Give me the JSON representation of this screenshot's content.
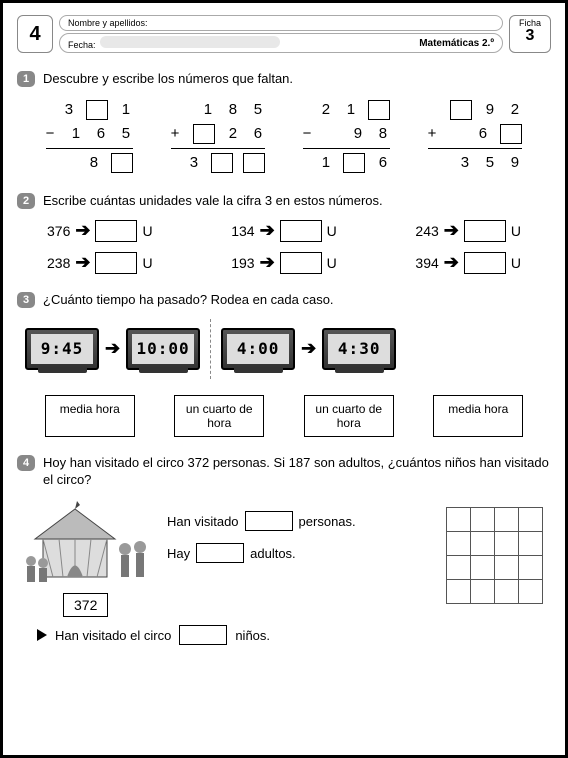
{
  "header": {
    "page_number": "4",
    "name_label": "Nombre y apellidos:",
    "date_label": "Fecha:",
    "subject": "Matemáticas 2.º",
    "ficha_label": "Ficha",
    "ficha_number": "3"
  },
  "ex1": {
    "num": "1",
    "title": "Descubre y escribe los números que faltan.",
    "ops": [
      {
        "sign": "−",
        "r1": [
          "3",
          "□",
          "1"
        ],
        "r2": [
          "1",
          "6",
          "5"
        ],
        "r3": [
          "",
          "8",
          "□"
        ]
      },
      {
        "sign": "+",
        "r1": [
          "1",
          "8",
          "5"
        ],
        "r2": [
          "□",
          "2",
          "6"
        ],
        "r3": [
          "3",
          "□",
          "□"
        ]
      },
      {
        "sign": "−",
        "r1": [
          "2",
          "1",
          "□"
        ],
        "r2": [
          "",
          "9",
          "8"
        ],
        "r3": [
          "1",
          "□",
          "6"
        ]
      },
      {
        "sign": "+",
        "r1": [
          "□",
          "9",
          "2"
        ],
        "r2": [
          "",
          "6",
          "□"
        ],
        "r3": [
          "3",
          "5",
          "9"
        ]
      }
    ]
  },
  "ex2": {
    "num": "2",
    "title": "Escribe cuántas unidades vale la cifra 3 en estos números.",
    "unit_label": "U",
    "row1": [
      "376",
      "134",
      "243"
    ],
    "row2": [
      "238",
      "193",
      "394"
    ]
  },
  "ex3": {
    "num": "3",
    "title": "¿Cuánto tiempo ha pasado? Rodea en cada caso.",
    "clocks": [
      "9:45",
      "10:00",
      "4:00",
      "4:30"
    ],
    "choices": [
      "media hora",
      "un cuarto de hora",
      "un cuarto de hora",
      "media hora"
    ]
  },
  "ex4": {
    "num": "4",
    "title": "Hoy han visitado el circo 372 personas. Si 187 son adultos, ¿cuántos niños han visitado el circo?",
    "given": "372",
    "line1a": "Han visitado",
    "line1b": "personas.",
    "line2a": "Hay",
    "line2b": "adultos.",
    "answer_a": "Han visitado el circo",
    "answer_b": "niños."
  },
  "colors": {
    "bullet_bg": "#888888",
    "border": "#000000"
  }
}
